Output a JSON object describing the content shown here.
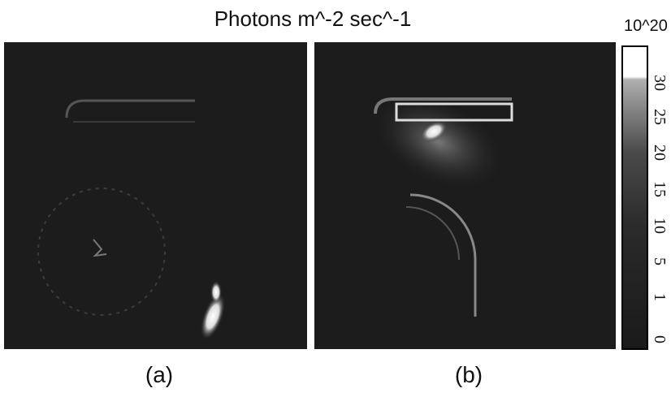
{
  "header": {
    "title": "Photons  m^-2  sec^-1",
    "scale_unit": "10^20"
  },
  "colorbar": {
    "ticks": [
      "30",
      "25",
      "20",
      "15",
      "10",
      "5",
      "1",
      "0"
    ]
  },
  "panels": [
    {
      "label": "(a)"
    },
    {
      "label": "(b)"
    }
  ]
}
